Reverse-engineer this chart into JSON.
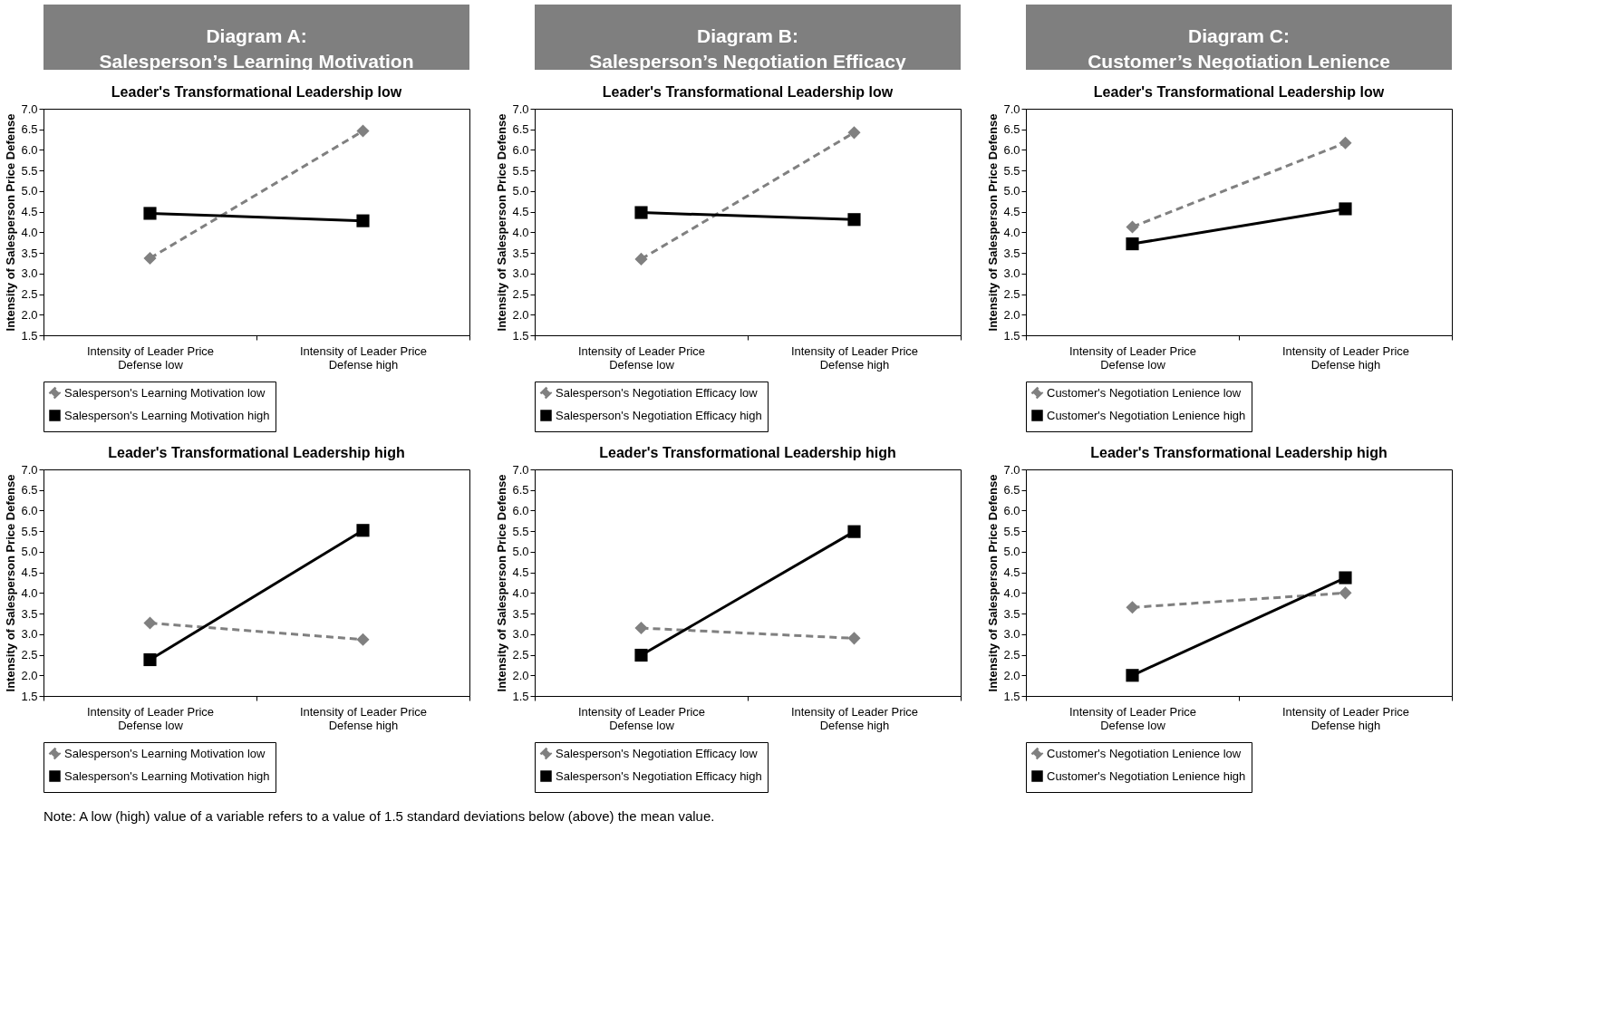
{
  "chart_data": [
    {
      "type": "line",
      "title": "Leader's Transformational Leadership low",
      "ylabel": "Intensity of Salesperson Price Defense",
      "annotations": [
        "Diagram A:\nSalesperson’s Learning Motivation"
      ],
      "categories": [
        "Intensity of Leader Price Defense low",
        "Intensity of Leader Price Defense high"
      ],
      "ylim": [
        1.5,
        7
      ],
      "yticks": [
        1.5,
        {
          "value": 2,
          "label": "2.0"
        },
        2.5,
        {
          "value": 3,
          "label": "3.0"
        },
        3.5,
        {
          "value": 4,
          "label": "4.0"
        },
        4.5,
        {
          "value": 5,
          "label": "5.0"
        },
        5.5,
        {
          "value": 6,
          "label": "6.0"
        },
        6.5,
        {
          "value": 7,
          "label": "7.0"
        }
      ],
      "legend": "bottom",
      "series": [
        {
          "name": "Salesperson's Learning Motivation low",
          "color": "#808080",
          "marker": "diamond",
          "line_style": "dashed",
          "values": [
            3.37,
            6.46
          ]
        },
        {
          "name": "Salesperson's Learning Motivation high",
          "color": "#000000",
          "marker": "square",
          "line_style": "solid",
          "values": [
            4.46,
            4.28
          ]
        }
      ]
    },
    {
      "type": "line",
      "title": "Leader's Transformational Leadership low",
      "ylabel": "Intensity of Salesperson Price Defense",
      "annotations": [
        "Diagram B:\nSalesperson’s Negotiation Efficacy"
      ],
      "categories": [
        "Intensity of Leader Price Defense low",
        "Intensity of Leader Price Defense high"
      ],
      "ylim": [
        1.5,
        7
      ],
      "yticks": [
        1.5,
        {
          "value": 2,
          "label": "2.0"
        },
        2.5,
        {
          "value": 3,
          "label": "3.0"
        },
        3.5,
        {
          "value": 4,
          "label": "4.0"
        },
        4.5,
        {
          "value": 5,
          "label": "5.0"
        },
        5.5,
        {
          "value": 6,
          "label": "6.0"
        },
        6.5,
        {
          "value": 7,
          "label": "7.0"
        }
      ],
      "legend": "bottom",
      "series": [
        {
          "name": "Salesperson's Negotiation Efficacy low",
          "color": "#808080",
          "marker": "diamond",
          "line_style": "dashed",
          "values": [
            3.35,
            6.42
          ]
        },
        {
          "name": "Salesperson's Negotiation Efficacy high",
          "color": "#000000",
          "marker": "square",
          "line_style": "solid",
          "values": [
            4.48,
            4.31
          ]
        }
      ]
    },
    {
      "type": "line",
      "title": "Leader's Transformational Leadership low",
      "ylabel": "Intensity of Salesperson Price Defense",
      "annotations": [
        "Diagram C:\nCustomer’s Negotiation Lenience"
      ],
      "categories": [
        "Intensity of Leader Price Defense low",
        "Intensity of Leader Price Defense high"
      ],
      "ylim": [
        1.5,
        7
      ],
      "yticks": [
        1.5,
        {
          "value": 2,
          "label": "2.0"
        },
        2.5,
        {
          "value": 3,
          "label": "3.0"
        },
        3.5,
        {
          "value": 4,
          "label": "4.0"
        },
        4.5,
        {
          "value": 5,
          "label": "5.0"
        },
        5.5,
        {
          "value": 6,
          "label": "6.0"
        },
        6.5,
        {
          "value": 7,
          "label": "7.0"
        }
      ],
      "legend": "bottom",
      "series": [
        {
          "name": "Customer's Negotiation Lenience low",
          "color": "#808080",
          "marker": "diamond",
          "line_style": "dashed",
          "values": [
            4.13,
            6.17
          ]
        },
        {
          "name": "Customer's Negotiation Lenience high",
          "color": "#000000",
          "marker": "square",
          "line_style": "solid",
          "values": [
            3.72,
            4.57
          ]
        }
      ]
    },
    {
      "type": "line",
      "title": "Leader's Transformational Leadership high",
      "ylabel": "Intensity of Salesperson Price Defense",
      "categories": [
        "Intensity of Leader Price Defense low",
        "Intensity of Leader Price Defense high"
      ],
      "ylim": [
        1.5,
        7
      ],
      "yticks": [
        1.5,
        {
          "value": 2,
          "label": "2.0"
        },
        2.5,
        {
          "value": 3,
          "label": "3.0"
        },
        3.5,
        {
          "value": 4,
          "label": "4.0"
        },
        4.5,
        {
          "value": 5,
          "label": "5.0"
        },
        5.5,
        {
          "value": 6,
          "label": "6.0"
        },
        6.5,
        {
          "value": 7,
          "label": "7.0"
        }
      ],
      "legend": "bottom",
      "series": [
        {
          "name": "Salesperson's Learning Motivation low",
          "color": "#808080",
          "marker": "diamond",
          "line_style": "dashed",
          "values": [
            3.27,
            2.87
          ]
        },
        {
          "name": "Salesperson's Learning Motivation high",
          "color": "#000000",
          "marker": "square",
          "line_style": "solid",
          "values": [
            2.38,
            5.52
          ]
        }
      ]
    },
    {
      "type": "line",
      "title": "Leader's Transformational Leadership high",
      "ylabel": "Intensity of Salesperson Price Defense",
      "categories": [
        "Intensity of Leader Price Defense low",
        "Intensity of Leader Price Defense high"
      ],
      "ylim": [
        1.5,
        7
      ],
      "yticks": [
        1.5,
        {
          "value": 2,
          "label": "2.0"
        },
        2.5,
        {
          "value": 3,
          "label": "3.0"
        },
        3.5,
        {
          "value": 4,
          "label": "4.0"
        },
        4.5,
        {
          "value": 5,
          "label": "5.0"
        },
        5.5,
        {
          "value": 6,
          "label": "6.0"
        },
        6.5,
        {
          "value": 7,
          "label": "7.0"
        }
      ],
      "legend": "bottom",
      "series": [
        {
          "name": "Salesperson's Negotiation Efficacy low",
          "color": "#808080",
          "marker": "diamond",
          "line_style": "dashed",
          "values": [
            3.15,
            2.9
          ]
        },
        {
          "name": "Salesperson's Negotiation Efficacy high",
          "color": "#000000",
          "marker": "square",
          "line_style": "solid",
          "values": [
            2.49,
            5.49
          ]
        }
      ]
    },
    {
      "type": "line",
      "title": "Leader's Transformational Leadership high",
      "ylabel": "Intensity of Salesperson Price Defense",
      "annotations": [
        "Note: A low (high) value of a variable refers to a value of 1.5 standard deviations below (above) the mean value."
      ],
      "categories": [
        "Intensity of Leader Price Defense low",
        "Intensity of Leader Price Defense high"
      ],
      "ylim": [
        1.5,
        7
      ],
      "yticks": [
        1.5,
        {
          "value": 2,
          "label": "2.0"
        },
        2.5,
        {
          "value": 3,
          "label": "3.0"
        },
        3.5,
        {
          "value": 4,
          "label": "4.0"
        },
        4.5,
        {
          "value": 5,
          "label": "5.0"
        },
        5.5,
        {
          "value": 6,
          "label": "6.0"
        },
        6.5,
        {
          "value": 7,
          "label": "7.0"
        }
      ],
      "legend": "bottom",
      "series": [
        {
          "name": "Customer's Negotiation Lenience low",
          "color": "#808080",
          "marker": "diamond",
          "line_style": "dashed",
          "values": [
            3.65,
            4.0
          ]
        },
        {
          "name": "Customer's Negotiation Lenience high",
          "color": "#000000",
          "marker": "square",
          "line_style": "solid",
          "values": [
            2.0,
            4.37
          ]
        }
      ]
    }
  ]
}
